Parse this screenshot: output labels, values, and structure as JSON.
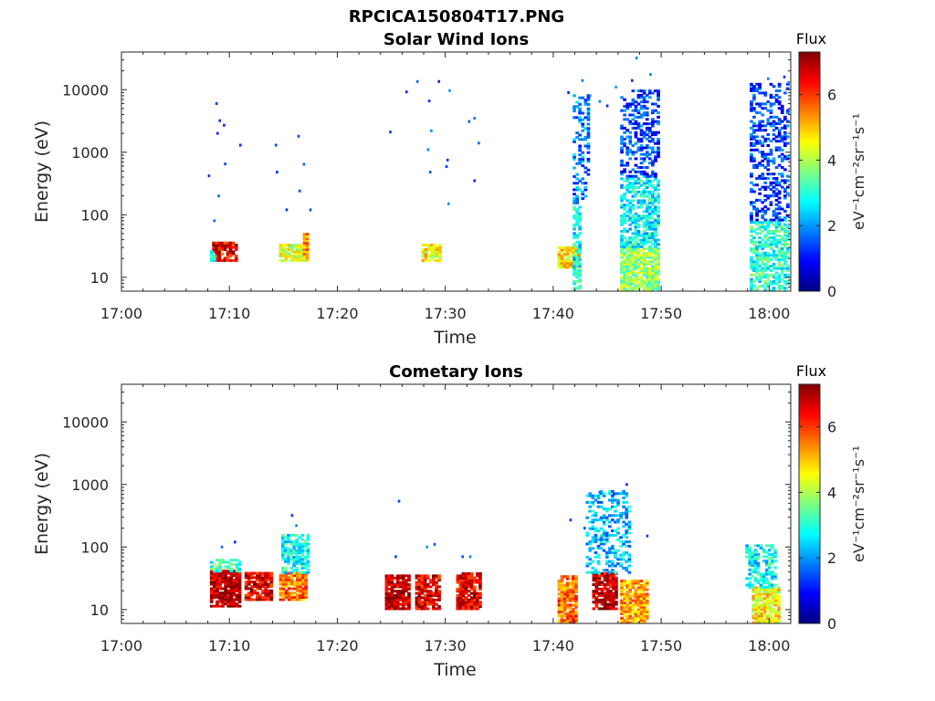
{
  "figure_title": "RPCICA150804T17.PNG",
  "colormap_stops": [
    "#00007f",
    "#0000ff",
    "#007fff",
    "#00ffff",
    "#7fff7f",
    "#ffff00",
    "#ff7f00",
    "#ff0000",
    "#7f0000"
  ],
  "chart_data": [
    {
      "type": "heatmap",
      "title": "Solar Wind Ions",
      "xlabel": "Time",
      "ylabel": "Energy (eV)",
      "y_scale": "log",
      "x_range_minutes": [
        0,
        62
      ],
      "y_range": [
        6,
        40000
      ],
      "x_ticks": [
        {
          "value": 0,
          "label": "17:00"
        },
        {
          "value": 10,
          "label": "17:10"
        },
        {
          "value": 20,
          "label": "17:20"
        },
        {
          "value": 30,
          "label": "17:30"
        },
        {
          "value": 40,
          "label": "17:40"
        },
        {
          "value": 50,
          "label": "17:50"
        },
        {
          "value": 60,
          "label": "18:00"
        }
      ],
      "y_ticks": [
        {
          "value": 10,
          "label": "10"
        },
        {
          "value": 100,
          "label": "100"
        },
        {
          "value": 1000,
          "label": "1000"
        },
        {
          "value": 10000,
          "label": "10000"
        }
      ],
      "colorbar": {
        "title": "Flux",
        "unit": "eV⁻¹cm⁻²sr⁻¹s⁻¹",
        "range": [
          0,
          7.3
        ],
        "ticks": [
          "0",
          "2",
          "4",
          "6"
        ]
      },
      "blocks": [
        {
          "t": [
            8.4,
            10.6
          ],
          "e": [
            18,
            35
          ],
          "level": 6.5
        },
        {
          "t": [
            8.2,
            8.6
          ],
          "e": [
            18,
            28
          ],
          "level": 3.2
        },
        {
          "t": [
            14.6,
            17.2
          ],
          "e": [
            18,
            32
          ],
          "level": 4.3
        },
        {
          "t": [
            16.8,
            17.2
          ],
          "e": [
            18,
            50
          ],
          "level": 5.3
        },
        {
          "t": [
            27.8,
            29.4
          ],
          "e": [
            18,
            32
          ],
          "level": 4.6
        },
        {
          "t": [
            40.4,
            42.4
          ],
          "e": [
            14,
            30
          ],
          "level": 4.8
        },
        {
          "t": [
            41.8,
            42.4
          ],
          "e": [
            6,
            150
          ],
          "level": 2.8
        },
        {
          "t": [
            41.8,
            43.2
          ],
          "e": [
            150,
            8000
          ],
          "level": 1.8
        },
        {
          "t": [
            46.2,
            49.6
          ],
          "e": [
            6,
            30
          ],
          "level": 3.8
        },
        {
          "t": [
            46.2,
            49.6
          ],
          "e": [
            30,
            400
          ],
          "level": 2.7
        },
        {
          "t": [
            46.2,
            49.6
          ],
          "e": [
            400,
            10000
          ],
          "level": 1.3
        },
        {
          "t": [
            58.2,
            61.8
          ],
          "e": [
            6,
            80
          ],
          "level": 3.0
        },
        {
          "t": [
            58.2,
            61.8
          ],
          "e": [
            80,
            12000
          ],
          "level": 1.3
        }
      ],
      "points": [
        {
          "t": 8.7,
          "e": 6000
        },
        {
          "t": 9.0,
          "e": 3200
        },
        {
          "t": 9.4,
          "e": 2700
        },
        {
          "t": 8.8,
          "e": 2000
        },
        {
          "t": 9.5,
          "e": 650
        },
        {
          "t": 8.0,
          "e": 420
        },
        {
          "t": 8.9,
          "e": 200
        },
        {
          "t": 10.9,
          "e": 1300
        },
        {
          "t": 14.2,
          "e": 1300
        },
        {
          "t": 16.3,
          "e": 1800
        },
        {
          "t": 14.3,
          "e": 480
        },
        {
          "t": 16.8,
          "e": 640
        },
        {
          "t": 16.4,
          "e": 240
        },
        {
          "t": 15.2,
          "e": 120
        },
        {
          "t": 17.4,
          "e": 120
        },
        {
          "t": 8.5,
          "e": 80
        },
        {
          "t": 24.8,
          "e": 2100
        },
        {
          "t": 26.3,
          "e": 9200
        },
        {
          "t": 27.3,
          "e": 13500
        },
        {
          "t": 28.4,
          "e": 6600
        },
        {
          "t": 29.3,
          "e": 13500
        },
        {
          "t": 30.3,
          "e": 9700
        },
        {
          "t": 28.6,
          "e": 2200
        },
        {
          "t": 28.3,
          "e": 1100
        },
        {
          "t": 28.5,
          "e": 480
        },
        {
          "t": 30.1,
          "e": 750
        },
        {
          "t": 30.0,
          "e": 590
        },
        {
          "t": 32.1,
          "e": 3100
        },
        {
          "t": 32.6,
          "e": 3500
        },
        {
          "t": 33.0,
          "e": 1400
        },
        {
          "t": 32.6,
          "e": 350
        },
        {
          "t": 30.2,
          "e": 150
        },
        {
          "t": 41.3,
          "e": 9000
        },
        {
          "t": 42.6,
          "e": 14000
        },
        {
          "t": 44.2,
          "e": 6500
        },
        {
          "t": 45.7,
          "e": 11000
        },
        {
          "t": 44.9,
          "e": 5500
        },
        {
          "t": 43.3,
          "e": 8000
        },
        {
          "t": 47.6,
          "e": 32000
        },
        {
          "t": 48.9,
          "e": 17500
        },
        {
          "t": 47.2,
          "e": 14000
        },
        {
          "t": 61.3,
          "e": 16000
        },
        {
          "t": 62.0,
          "e": 23000
        },
        {
          "t": 61.7,
          "e": 13000
        },
        {
          "t": 59.8,
          "e": 15000
        }
      ]
    },
    {
      "type": "heatmap",
      "title": "Cometary Ions",
      "xlabel": "Time",
      "ylabel": "Energy (eV)",
      "y_scale": "log",
      "x_range_minutes": [
        0,
        62
      ],
      "y_range": [
        6,
        40000
      ],
      "x_ticks": [
        {
          "value": 0,
          "label": "17:00"
        },
        {
          "value": 10,
          "label": "17:10"
        },
        {
          "value": 20,
          "label": "17:20"
        },
        {
          "value": 30,
          "label": "17:30"
        },
        {
          "value": 40,
          "label": "17:40"
        },
        {
          "value": 50,
          "label": "17:50"
        },
        {
          "value": 60,
          "label": "18:00"
        }
      ],
      "y_ticks": [
        {
          "value": 10,
          "label": "10"
        },
        {
          "value": 100,
          "label": "100"
        },
        {
          "value": 1000,
          "label": "1000"
        },
        {
          "value": 10000,
          "label": "10000"
        }
      ],
      "colorbar": {
        "title": "Flux",
        "unit": "eV⁻¹cm⁻²sr⁻¹s⁻¹",
        "range": [
          0,
          7.3
        ],
        "ticks": [
          "0",
          "2",
          "4",
          "6"
        ]
      },
      "blocks": [
        {
          "t": [
            8.2,
            10.8
          ],
          "e": [
            11,
            40
          ],
          "level": 6.9
        },
        {
          "t": [
            8.2,
            10.8
          ],
          "e": [
            40,
            60
          ],
          "level": 3.2
        },
        {
          "t": [
            11.4,
            13.8
          ],
          "e": [
            14,
            38
          ],
          "level": 6.6
        },
        {
          "t": [
            14.6,
            17.2
          ],
          "e": [
            14,
            38
          ],
          "level": 5.6
        },
        {
          "t": [
            14.8,
            17.2
          ],
          "e": [
            38,
            150
          ],
          "level": 2.8
        },
        {
          "t": [
            24.4,
            26.6
          ],
          "e": [
            10,
            36
          ],
          "level": 6.9
        },
        {
          "t": [
            27.2,
            29.4
          ],
          "e": [
            10,
            35
          ],
          "level": 6.6
        },
        {
          "t": [
            31.0,
            33.2
          ],
          "e": [
            10,
            38
          ],
          "level": 6.6
        },
        {
          "t": [
            40.4,
            42.2
          ],
          "e": [
            6,
            35
          ],
          "level": 5.6
        },
        {
          "t": [
            43.6,
            45.8
          ],
          "e": [
            10,
            38
          ],
          "level": 6.8
        },
        {
          "t": [
            43.0,
            47.0
          ],
          "e": [
            38,
            800
          ],
          "level": 2.3
        },
        {
          "t": [
            46.2,
            48.6
          ],
          "e": [
            6,
            28
          ],
          "level": 5.2
        },
        {
          "t": [
            58.4,
            60.8
          ],
          "e": [
            6,
            22
          ],
          "level": 4.6
        },
        {
          "t": [
            57.8,
            60.6
          ],
          "e": [
            22,
            110
          ],
          "level": 2.7
        }
      ],
      "points": [
        {
          "t": 9.2,
          "e": 100
        },
        {
          "t": 10.4,
          "e": 120
        },
        {
          "t": 15.7,
          "e": 320
        },
        {
          "t": 16.1,
          "e": 220
        },
        {
          "t": 25.6,
          "e": 540
        },
        {
          "t": 25.3,
          "e": 70
        },
        {
          "t": 28.2,
          "e": 100
        },
        {
          "t": 28.9,
          "e": 110
        },
        {
          "t": 31.5,
          "e": 70
        },
        {
          "t": 32.2,
          "e": 70
        },
        {
          "t": 41.5,
          "e": 270
        },
        {
          "t": 42.8,
          "e": 200
        },
        {
          "t": 44.2,
          "e": 750
        },
        {
          "t": 45.5,
          "e": 700
        },
        {
          "t": 46.7,
          "e": 1000
        },
        {
          "t": 48.6,
          "e": 150
        },
        {
          "t": 61.9,
          "e": 400
        }
      ]
    }
  ]
}
